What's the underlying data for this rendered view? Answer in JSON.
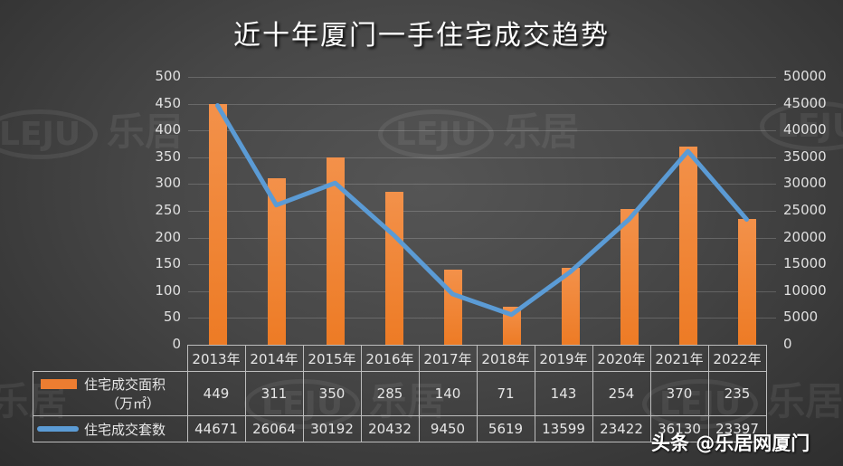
{
  "title": "近十年厦门一手住宅成交趋势",
  "watermark": {
    "logo": "LEJU",
    "text": "乐居"
  },
  "credit": "头条 @乐居网厦门",
  "colors": {
    "bar": "#ed7d31",
    "line": "#5b9bd5",
    "background": "#444444"
  },
  "chart_data": {
    "type": "bar+line",
    "title": "近十年厦门一手住宅成交趋势",
    "categories": [
      "2013年",
      "2014年",
      "2015年",
      "2016年",
      "2017年",
      "2018年",
      "2019年",
      "2020年",
      "2021年",
      "2022年"
    ],
    "series": [
      {
        "name": "住宅成交面积（万㎡）",
        "type": "bar",
        "axis": "left",
        "values": [
          449,
          311,
          350,
          285,
          140,
          71,
          143,
          254,
          370,
          235
        ]
      },
      {
        "name": "住宅成交套数",
        "type": "line",
        "axis": "right",
        "values": [
          44671,
          26064,
          30192,
          20432,
          9450,
          5619,
          13599,
          23422,
          36130,
          23397
        ]
      }
    ],
    "y_left": {
      "ylim": [
        0,
        500
      ],
      "ticks": [
        "0",
        "50",
        "100",
        "150",
        "200",
        "250",
        "300",
        "350",
        "400",
        "450",
        "500"
      ]
    },
    "y_right": {
      "ylim": [
        0,
        50000
      ],
      "ticks": [
        "0",
        "5000",
        "10000",
        "15000",
        "20000",
        "25000",
        "30000",
        "35000",
        "40000",
        "45000",
        "50000"
      ]
    },
    "grid": true,
    "legend_position": "data-table"
  },
  "table": {
    "legend": {
      "area_label_line1": "住宅成交面积",
      "area_label_line2": "（万㎡）",
      "count_label": "住宅成交套数"
    }
  }
}
